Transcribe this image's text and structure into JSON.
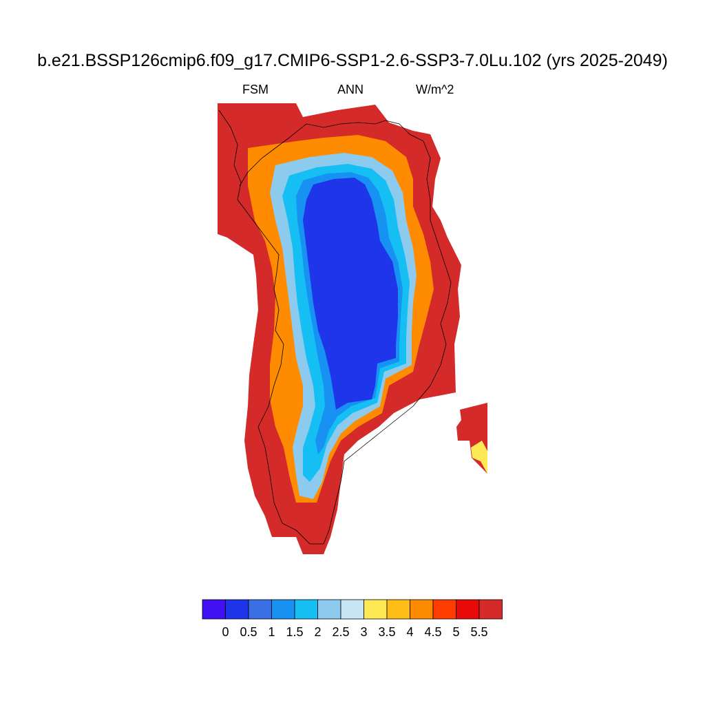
{
  "title": "b.e21.BSSP126cmip6.f09_g17.CMIP6-SSP1-2.6-SSP3-7.0Lu.102 (yrs 2025-2049)",
  "subtitle_left": "FSM",
  "subtitle_center": "ANN",
  "subtitle_right": "W/m^2",
  "colorbar": {
    "labels": [
      "0",
      "0.5",
      "1",
      "1.5",
      "2",
      "2.5",
      "3",
      "3.5",
      "4",
      "4.5",
      "5",
      "5.5"
    ],
    "colors": [
      "#4010f0",
      "#1f35ea",
      "#3a6fe4",
      "#1791f2",
      "#15bff4",
      "#8ccbee",
      "#c9e6f7",
      "#ffe955",
      "#ffbd15",
      "#ff8b00",
      "#ff3d00",
      "#e80a08",
      "#d42a2a"
    ]
  },
  "map": {
    "region": "Greenland",
    "colors": {
      "ocean": "#ffffff",
      "coast": "#000000",
      "high": "#d42a2a",
      "interior": "#1f35ea"
    }
  }
}
